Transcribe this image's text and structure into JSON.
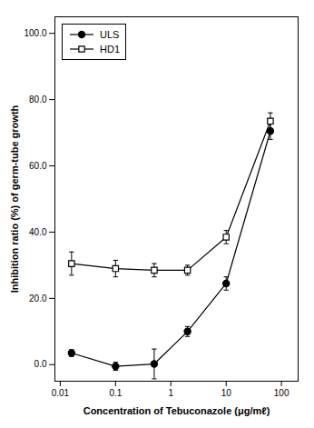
{
  "chart_data": {
    "type": "line",
    "xlabel": "Concentration of Tebuconazole (μg/mℓ)",
    "ylabel": "Inhibition ratio (%) of germ-tube growth",
    "log": "x",
    "xlim": [
      0.008,
      200
    ],
    "xticks": [
      0.01,
      0.1,
      1,
      10,
      100
    ],
    "ylim": [
      -5,
      105
    ],
    "yticks": [
      {
        "value": 0.0,
        "label": "0.0"
      },
      {
        "value": 20.0,
        "label": "20.0"
      },
      {
        "value": 40.0,
        "label": "40.0"
      },
      {
        "value": 60.0,
        "label": "60.0"
      },
      {
        "value": 80.0,
        "label": "80.0"
      },
      {
        "value": 100.0,
        "label": "100.0"
      }
    ],
    "legend": "upper left",
    "x": [
      0.016,
      0.1,
      0.5,
      2,
      10,
      63
    ],
    "series": [
      {
        "name": "ULS",
        "color": "#000000",
        "marker": "circle",
        "line_style": "solid",
        "values": [
          3.5,
          -0.5,
          0.2,
          10.0,
          24.5,
          70.5
        ],
        "yerr": [
          1.0,
          1.2,
          4.5,
          1.5,
          2.0,
          2.5
        ]
      },
      {
        "name": "HD1",
        "color": "#000000",
        "marker": "square",
        "line_style": "solid",
        "values": [
          30.5,
          29.0,
          28.5,
          28.5,
          38.5,
          73.5
        ],
        "yerr": [
          3.5,
          2.5,
          2.0,
          1.5,
          2.0,
          2.5
        ]
      }
    ]
  }
}
